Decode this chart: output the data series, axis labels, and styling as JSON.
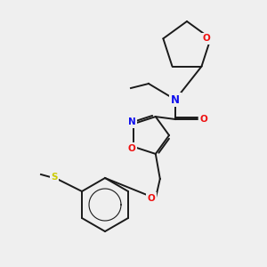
{
  "background_color": "#efefef",
  "bond_color": "#1a1a1a",
  "atom_colors": {
    "N": "#1010ee",
    "O": "#ee1010",
    "S": "#cccc00",
    "C": "#1a1a1a"
  },
  "fig_width": 3.0,
  "fig_height": 3.0,
  "dpi": 100,
  "lw": 1.4,
  "fontsize": 7.5
}
